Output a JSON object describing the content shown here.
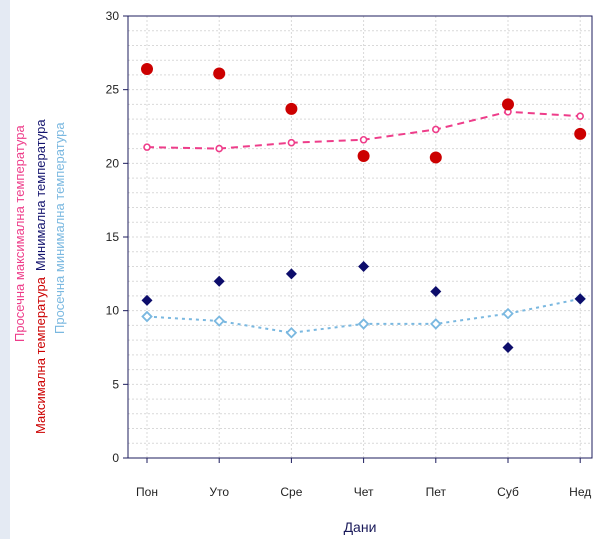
{
  "chart_data": {
    "type": "line",
    "categories": [
      "Пон",
      "Уто",
      "Сре",
      "Чет",
      "Пет",
      "Суб",
      "Нед"
    ],
    "xlabel": "Дани",
    "ylim": [
      0,
      30
    ],
    "yticks": [
      0,
      5,
      10,
      15,
      20,
      25,
      30
    ],
    "grid": true,
    "ylabels": [
      {
        "text": "Просечна максимална температура",
        "color": "#ee3d8a"
      },
      {
        "text": "Максимална температура",
        "color": "#cc0000"
      },
      {
        "text": "Минимална температура",
        "color": "#14146e"
      },
      {
        "text": "Просечна минимална температура",
        "color": "#7ab8e0"
      }
    ],
    "series": [
      {
        "name": "Максимална температура",
        "kind": "scatter",
        "marker": "circle",
        "color": "#cc0000",
        "values": [
          26.4,
          26.1,
          23.7,
          20.5,
          20.4,
          24.0,
          22.0
        ]
      },
      {
        "name": "Просечна максимална температура",
        "kind": "line",
        "marker": "open-circle",
        "dash": "dashed",
        "color": "#ee3d8a",
        "values": [
          21.1,
          21.0,
          21.4,
          21.6,
          22.3,
          23.5,
          23.2
        ]
      },
      {
        "name": "Минимална температура",
        "kind": "scatter",
        "marker": "diamond",
        "color": "#0d0d6b",
        "values": [
          10.7,
          12.0,
          12.5,
          13.0,
          11.3,
          7.5,
          10.8
        ]
      },
      {
        "name": "Просечна минимална температура",
        "kind": "line",
        "marker": "open-diamond",
        "dash": "dotted",
        "color": "#7ab8e0",
        "values": [
          9.6,
          9.3,
          8.5,
          9.1,
          9.1,
          9.8,
          10.8
        ]
      }
    ]
  }
}
